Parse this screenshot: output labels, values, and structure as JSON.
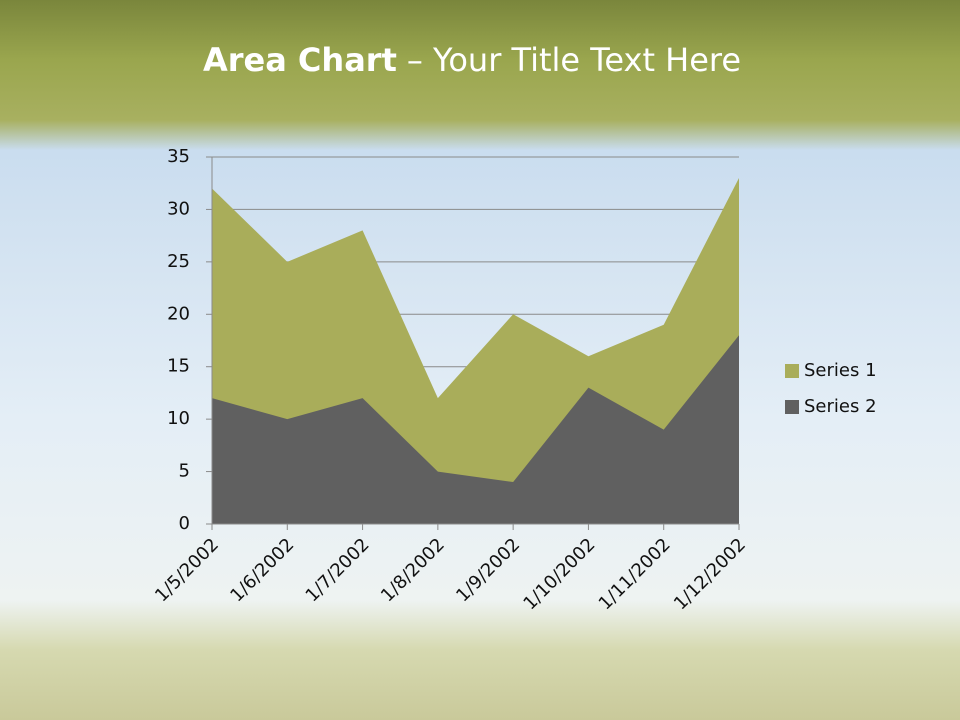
{
  "title_bold": "Area Chart",
  "title_rest": "– Your Title Text Here",
  "chart_data": {
    "type": "area",
    "categories": [
      "1/5/2002",
      "1/6/2002",
      "1/7/2002",
      "1/8/2002",
      "1/9/2002",
      "1/10/2002",
      "1/11/2002",
      "1/12/2002"
    ],
    "series": [
      {
        "name": "Series 1",
        "color": "#a9ad5a",
        "values": [
          32,
          25,
          28,
          12,
          20,
          16,
          19,
          33
        ]
      },
      {
        "name": "Series 2",
        "color": "#606060",
        "values": [
          12,
          10,
          12,
          5,
          4,
          13,
          9,
          18
        ]
      }
    ],
    "ylim": [
      0,
      35
    ],
    "yticks": [
      0,
      5,
      10,
      15,
      20,
      25,
      30,
      35
    ],
    "grid": true,
    "legend": "right"
  }
}
